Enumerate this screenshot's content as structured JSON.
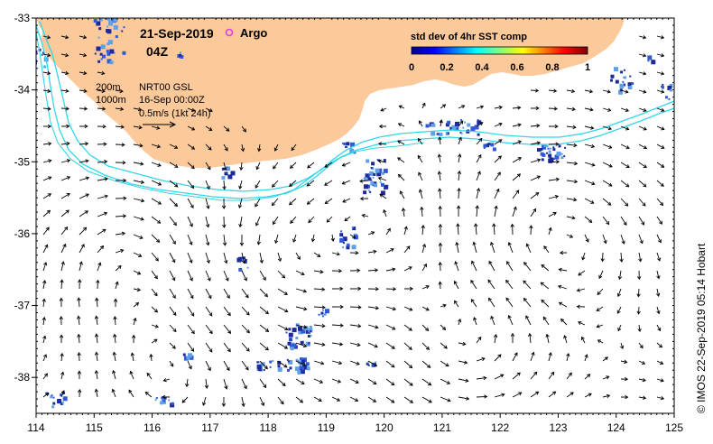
{
  "map": {
    "date_title": "21-Sep-2019",
    "time_title": "04Z",
    "legend_argo_label": "Argo",
    "legend_argo_color": "#e040e0",
    "iso_200_label": "200m",
    "iso_1000_label": "1000m",
    "product_label": "NRT00 GSL",
    "product_date_label": "16-Sep 00:00Z",
    "vector_scale_label": "0.5m/s (1kt 24h)",
    "credit": "© IMOS 22-Sep-2019 05:14 Hobart",
    "colors": {
      "land": "#fbc99a",
      "ocean": "#ffffff",
      "isobath": "#33d6e8",
      "sst_dark": "#1c2a9a",
      "sst_mid": "#2f59d6",
      "sst_light": "#5fa0e8"
    },
    "x_axis_ticks": [
      "114",
      "115",
      "116",
      "117",
      "118",
      "119",
      "120",
      "121",
      "122",
      "123",
      "124",
      "125"
    ],
    "y_axis_ticks": [
      "-33",
      "-34",
      "-35",
      "-36",
      "-37",
      "-38"
    ],
    "lon_range": [
      114,
      125
    ],
    "lat_range": [
      -38.5,
      -33
    ]
  },
  "colorbar": {
    "title": "std dev of 4hr SST comp",
    "ticks": [
      "0",
      "0.2",
      "0.4",
      "0.6",
      "0.8",
      "1"
    ],
    "range": [
      0,
      1
    ]
  }
}
